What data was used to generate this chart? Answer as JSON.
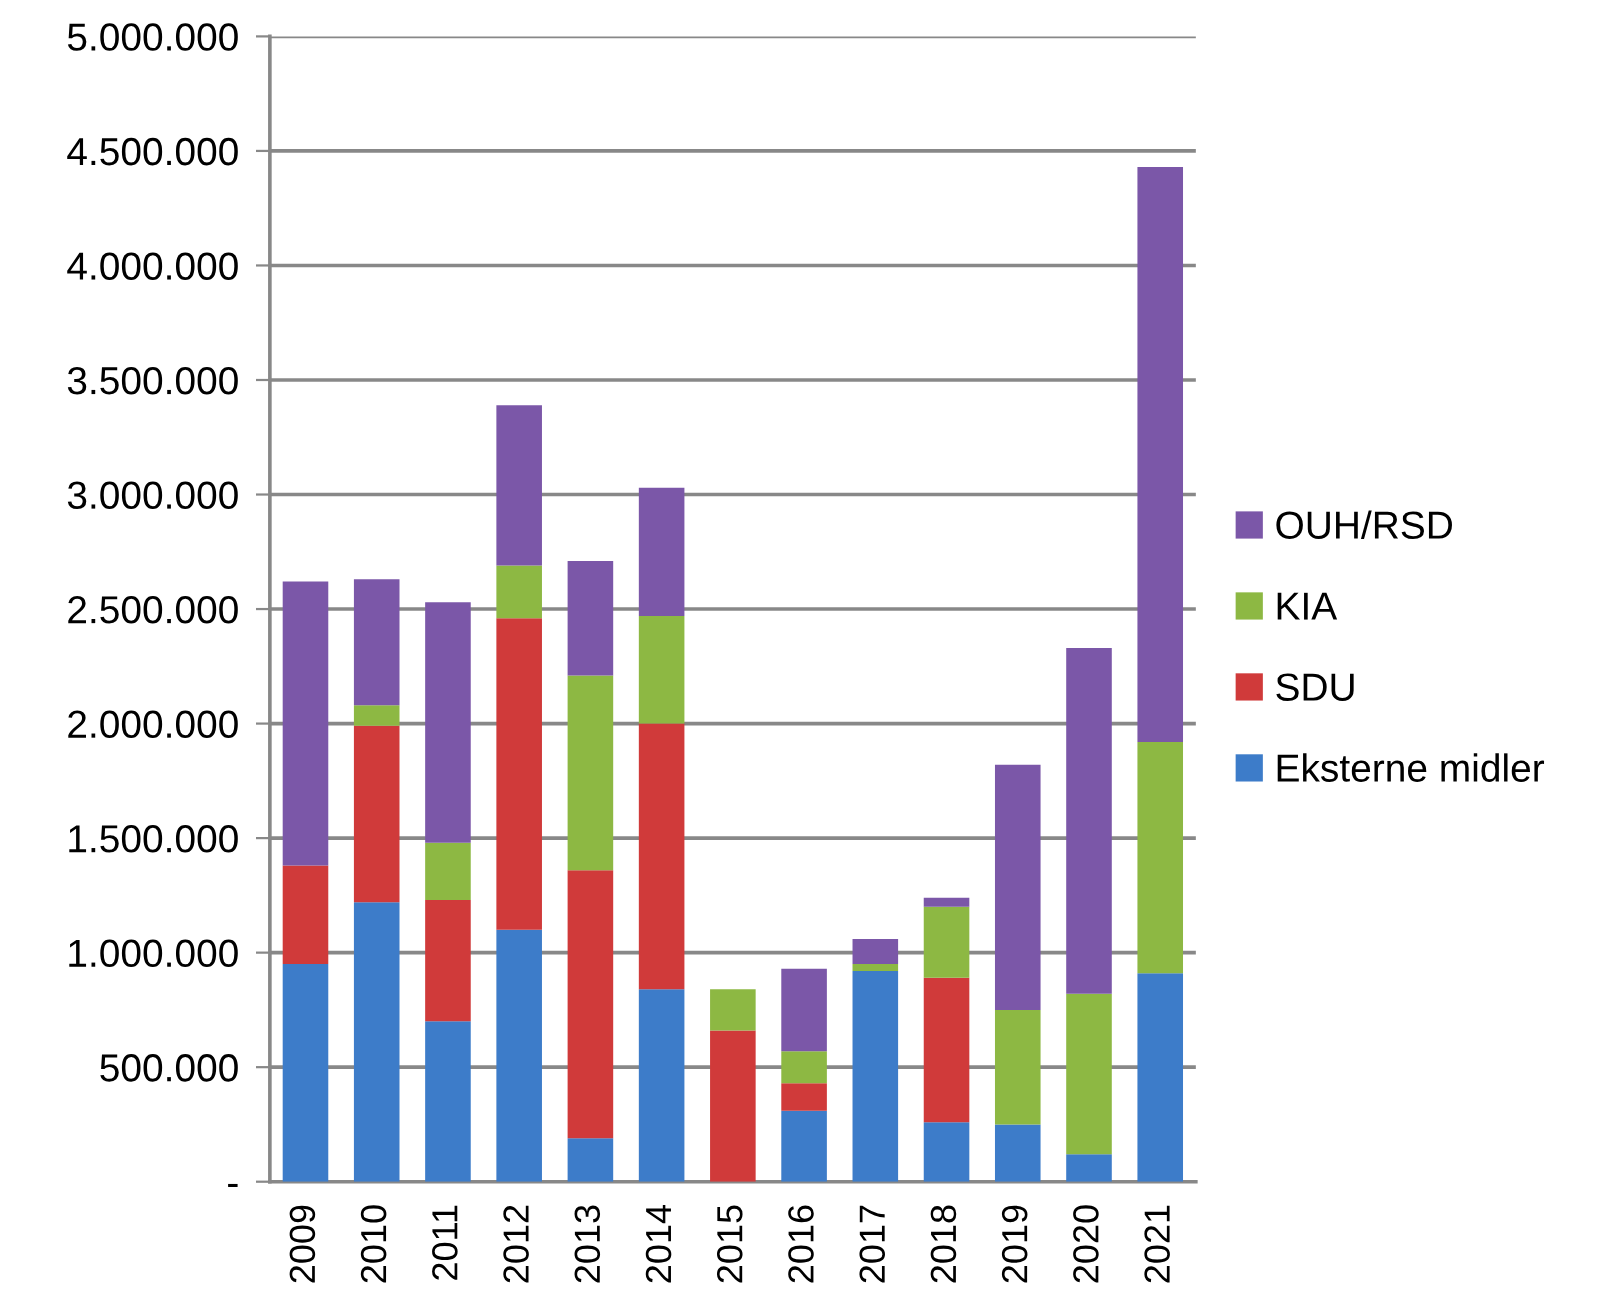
{
  "chart_data": {
    "type": "bar",
    "stacked": true,
    "categories": [
      "2009",
      "2010",
      "2011",
      "2012",
      "2013",
      "2014",
      "2015",
      "2016",
      "2017",
      "2018",
      "2019",
      "2020",
      "2021"
    ],
    "series": [
      {
        "name": "Eksterne midler",
        "color": "#3d7cc9",
        "values": [
          950000,
          1220000,
          700000,
          1100000,
          190000,
          840000,
          0,
          310000,
          920000,
          260000,
          250000,
          120000,
          910000
        ]
      },
      {
        "name": "SDU",
        "color": "#d03a3a",
        "values": [
          430000,
          770000,
          530000,
          1360000,
          1170000,
          1160000,
          660000,
          120000,
          0,
          630000,
          0,
          0,
          0
        ]
      },
      {
        "name": "KIA",
        "color": "#8db843",
        "values": [
          0,
          90000,
          250000,
          230000,
          850000,
          470000,
          180000,
          140000,
          30000,
          310000,
          500000,
          700000,
          1010000
        ]
      },
      {
        "name": "OUH/RSD",
        "color": "#7b57a8",
        "values": [
          1240000,
          550000,
          1050000,
          700000,
          500000,
          560000,
          0,
          360000,
          110000,
          40000,
          1070000,
          1510000,
          2510000
        ]
      }
    ],
    "ylim": [
      0,
      5000000
    ],
    "yticks": [
      {
        "value": 0,
        "label": "-"
      },
      {
        "value": 500000,
        "label": "500.000"
      },
      {
        "value": 1000000,
        "label": "1.000.000"
      },
      {
        "value": 1500000,
        "label": "1.500.000"
      },
      {
        "value": 2000000,
        "label": "2.000.000"
      },
      {
        "value": 2500000,
        "label": "2.500.000"
      },
      {
        "value": 3000000,
        "label": "3.000.000"
      },
      {
        "value": 3500000,
        "label": "3.500.000"
      },
      {
        "value": 4000000,
        "label": "4.000.000"
      },
      {
        "value": 4500000,
        "label": "4.500.000"
      },
      {
        "value": 5000000,
        "label": "5.000.000"
      }
    ],
    "grid": "y",
    "legend": "right"
  }
}
